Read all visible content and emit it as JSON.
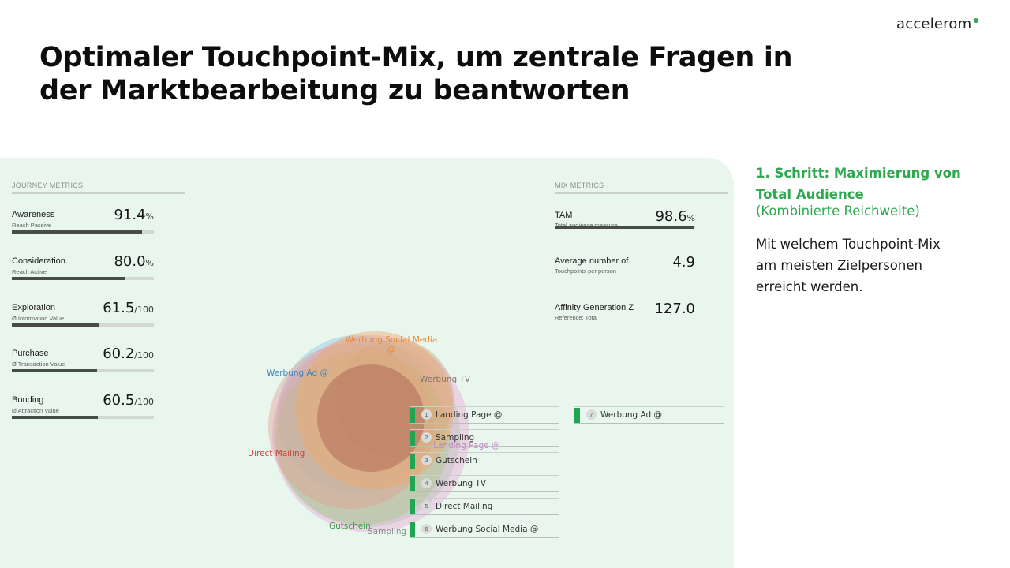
{
  "logo": {
    "text": "accelerom"
  },
  "title": "Optimaler Touchpoint-Mix, um zentrale Fragen in der Marktbearbeitung zu beantworten",
  "journey": {
    "header": "JOURNEY METRICS",
    "metrics": [
      {
        "name": "Awareness",
        "sub": "Reach Passive",
        "value": "91.4",
        "unit": "%",
        "fraction": 0.914
      },
      {
        "name": "Consideration",
        "sub": "Reach Active",
        "value": "80.0",
        "unit": "%",
        "fraction": 0.8
      },
      {
        "name": "Exploration",
        "sub": "Ø Information Value",
        "value": "61.5",
        "unit": "/100",
        "fraction": 0.615
      },
      {
        "name": "Purchase",
        "sub": "Ø Transaction Value",
        "value": "60.2",
        "unit": "/100",
        "fraction": 0.602
      },
      {
        "name": "Bonding",
        "sub": "Ø Attraction Value",
        "value": "60.5",
        "unit": "/100",
        "fraction": 0.605
      }
    ]
  },
  "mix": {
    "header": "MIX METRICS",
    "metrics": [
      {
        "name": "TAM",
        "sub": "Total audience measure",
        "value": "98.6",
        "unit": "%",
        "fraction": 0.986
      },
      {
        "name": "Average number of",
        "sub": "Touchpoints per person",
        "value": "4.9",
        "unit": ""
      },
      {
        "name": "Affinity Generation Z",
        "sub": "Reference: Total",
        "value": "127.0",
        "unit": ""
      }
    ]
  },
  "venn": {
    "labels": [
      {
        "text": "Werbung Social Media",
        "color": "#e8893a"
      },
      {
        "text": "@",
        "color": "#e8893a"
      },
      {
        "text": "Werbung Ad @",
        "color": "#3a86b8"
      },
      {
        "text": "Werbung TV",
        "color": "#8a7466"
      },
      {
        "text": "Landing Page @",
        "color": "#c47fc2"
      },
      {
        "text": "Direct Mailing",
        "color": "#c9423f"
      },
      {
        "text": "Gutschein",
        "color": "#3b9a45"
      },
      {
        "text": "Sampling",
        "color": "#888e8a"
      }
    ]
  },
  "touchpoints": [
    {
      "num": "1",
      "label": "Landing Page @"
    },
    {
      "num": "2",
      "label": "Sampling"
    },
    {
      "num": "3",
      "label": "Gutschein"
    },
    {
      "num": "4",
      "label": "Werbung TV"
    },
    {
      "num": "5",
      "label": "Direct Mailing"
    },
    {
      "num": "6",
      "label": "Werbung Social Media @"
    },
    {
      "num": "7",
      "label": "Werbung Ad @"
    }
  ],
  "side": {
    "heading": "1. Schritt: Maximierung von Total Audience",
    "subheading": "(Kombinierte Reichweite)",
    "text": "Mit welchem Touchpoint-Mix am meisten Zielpersonen erreicht werden."
  },
  "colors": {
    "accent": "#2fa84f",
    "panel": "#e8f6ee"
  }
}
